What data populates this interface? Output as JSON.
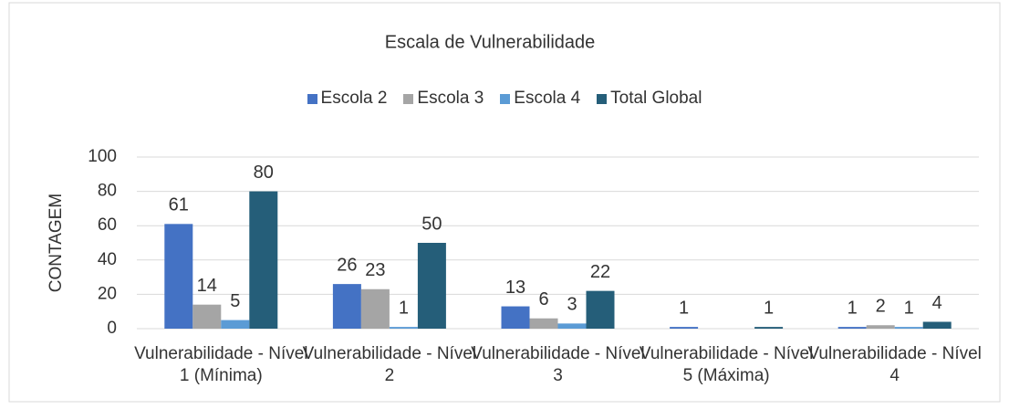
{
  "chart_data": {
    "type": "bar",
    "title": "Escala de Vulnerabilidade",
    "y_label": "CONTAGEM",
    "categories": [
      "Vulnerabilidade - Nível 1 (Mínima)",
      "Vulnerabilidade - Nível 2",
      "Vulnerabilidade - Nível 3",
      "Vulnerabilidade - Nível 5 (Máxima)",
      "Vulnerabilidade - Nível 4"
    ],
    "series": [
      {
        "name": "Escola 2",
        "color": "#4472c4",
        "values": [
          61,
          26,
          13,
          1,
          1
        ]
      },
      {
        "name": "Escola 3",
        "color": "#a5a5a5",
        "values": [
          14,
          23,
          6,
          null,
          2
        ]
      },
      {
        "name": "Escola 4",
        "color": "#5b9bd5",
        "values": [
          5,
          1,
          3,
          null,
          1
        ]
      },
      {
        "name": "Total Global",
        "color": "#255e79",
        "values": [
          80,
          50,
          22,
          1,
          4
        ]
      }
    ],
    "ylim": [
      0,
      100
    ],
    "yticks": [
      0,
      20,
      40,
      60,
      80,
      100
    ],
    "grid": true,
    "legend": "top"
  }
}
